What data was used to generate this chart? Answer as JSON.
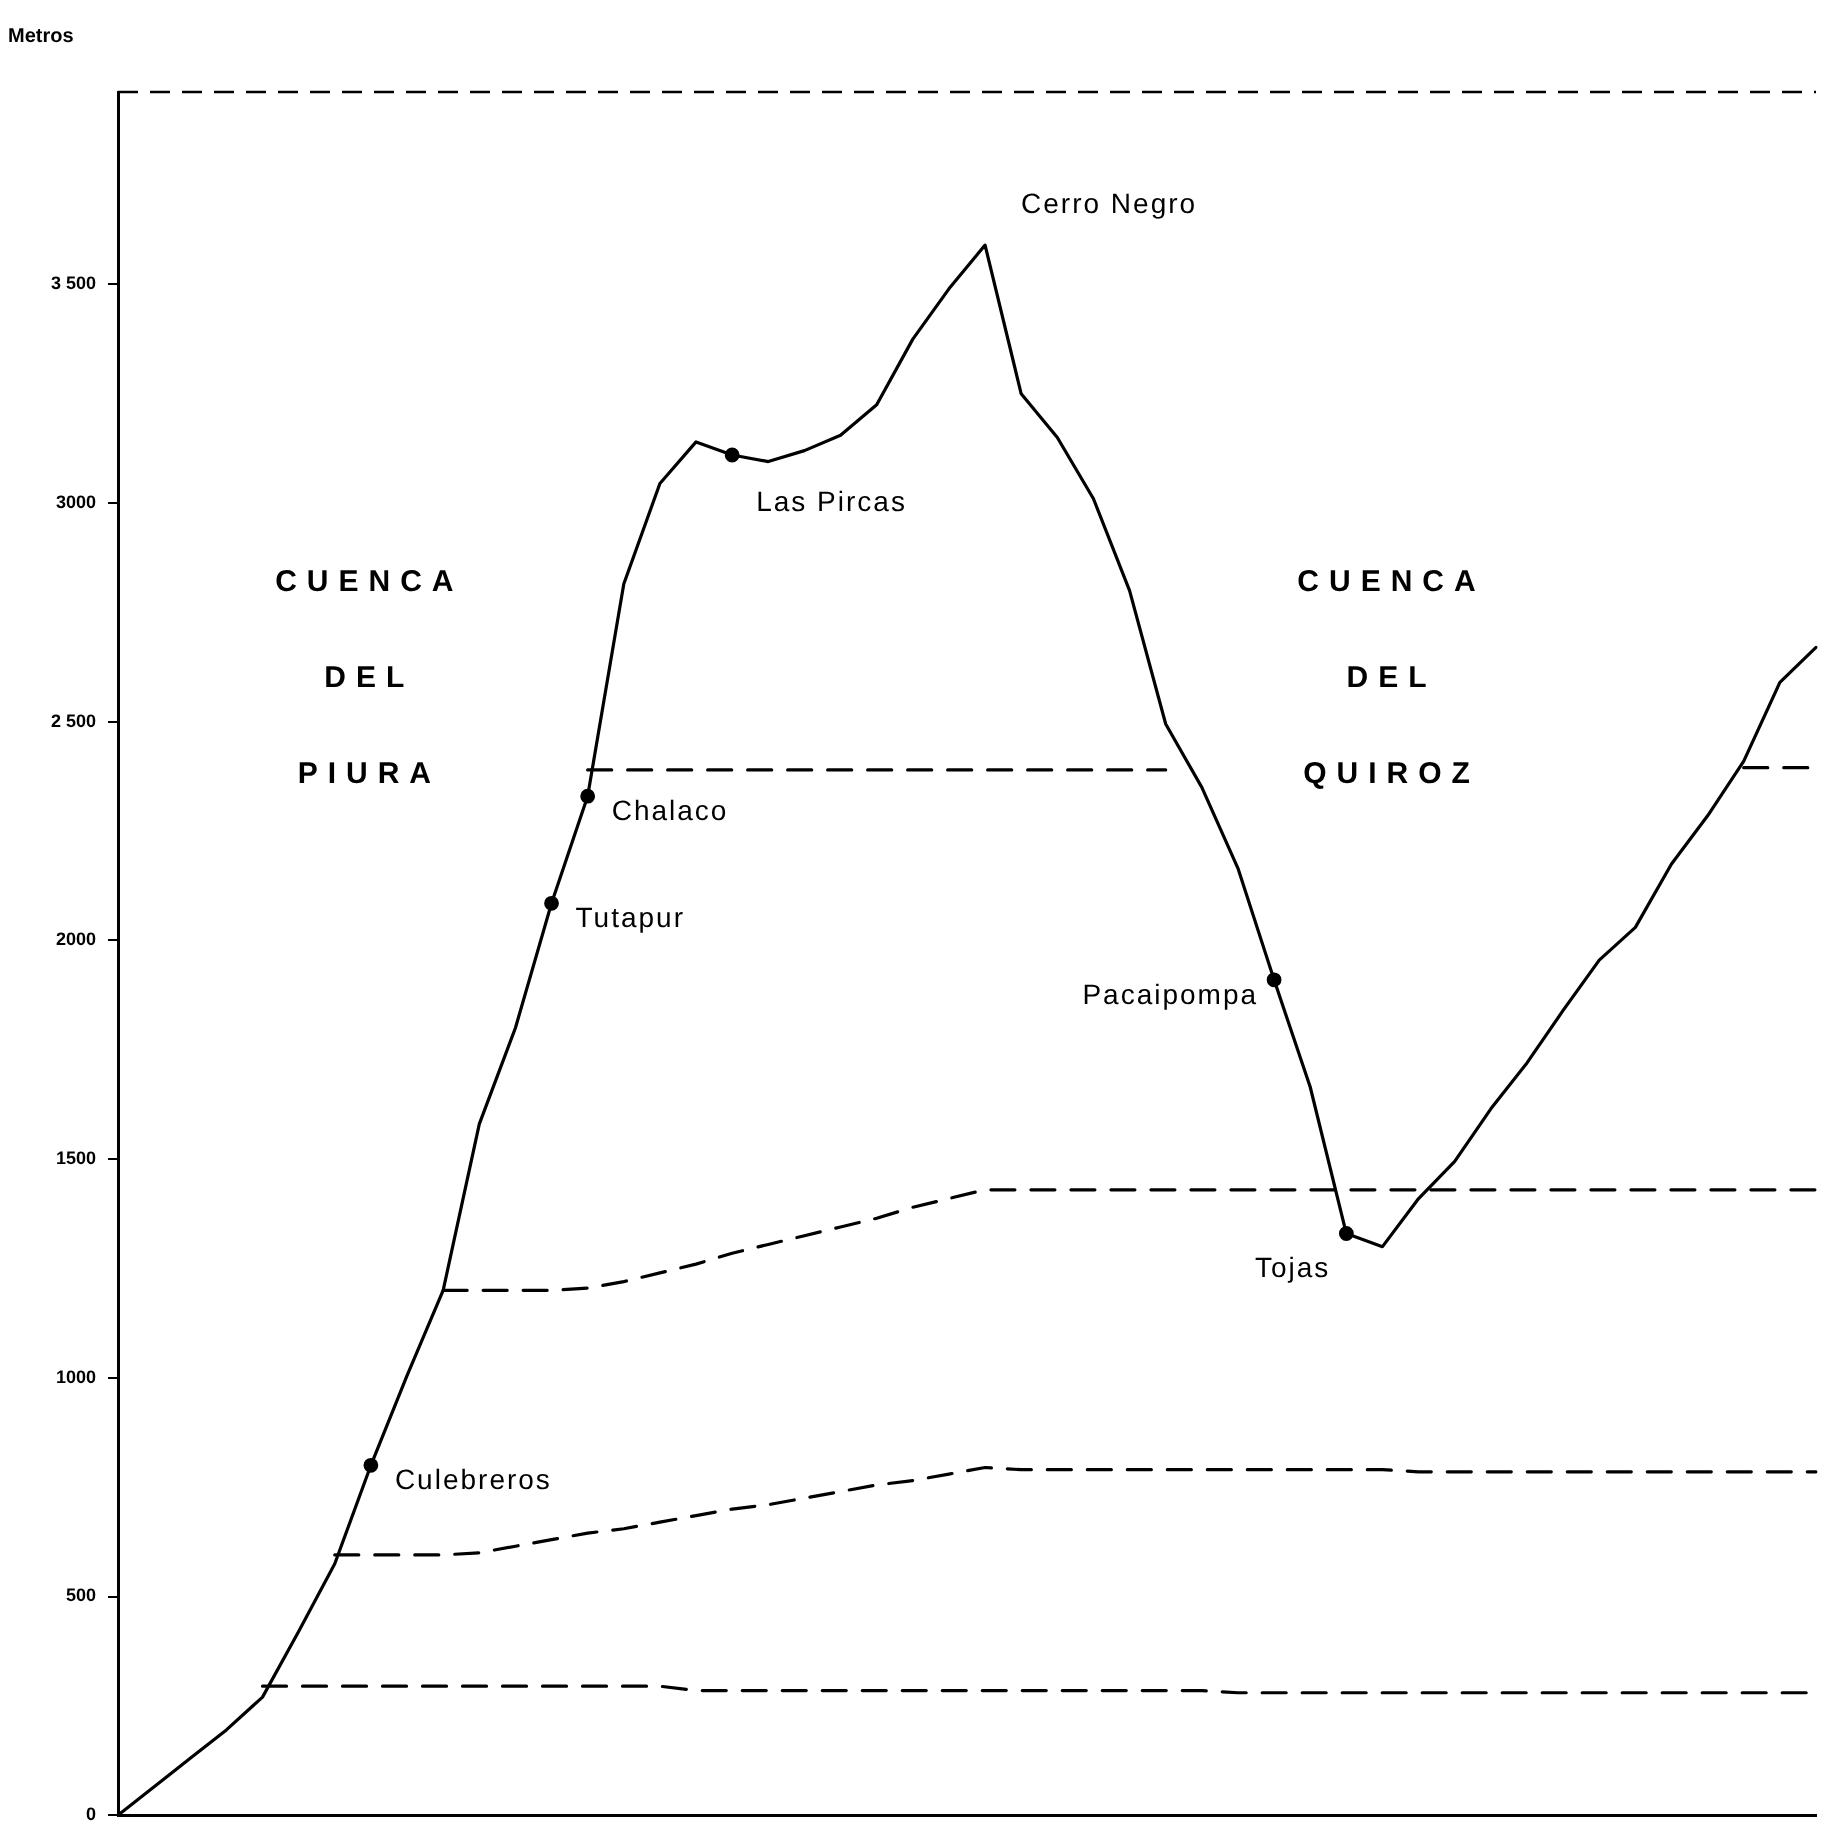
{
  "chart_data": {
    "type": "line",
    "ylabel": "Metros",
    "categories": [
      null,
      null,
      null,
      null,
      null,
      null,
      null,
      null,
      null,
      null,
      null,
      null,
      null,
      null,
      null,
      null,
      null,
      null,
      null,
      null,
      null,
      null,
      null,
      null,
      null,
      null,
      null,
      null,
      null,
      null,
      null,
      null,
      null,
      null,
      null,
      null,
      null,
      null,
      null,
      null,
      null,
      null,
      null,
      null,
      null,
      null,
      null,
      null
    ],
    "series": [
      {
        "color": "#000000",
        "line_style": "solid",
        "values": [
          0,
          65,
          130,
          195,
          270,
          420,
          575,
          800,
          1005,
          1200,
          1580,
          1800,
          2085,
          2330,
          2815,
          3045,
          3140,
          3110,
          3095,
          3120,
          3155,
          3225,
          3375,
          3490,
          3590,
          3250,
          3150,
          3010,
          2800,
          2495,
          2350,
          2165,
          1910,
          1665,
          1330,
          1300,
          1410,
          1495,
          1615,
          1720,
          1840,
          1955,
          2030,
          2175,
          2285,
          2410,
          2590,
          2670
        ],
        "value_labels": [
          null,
          null,
          null,
          null,
          null,
          null,
          null,
          "Culebreros",
          null,
          null,
          null,
          null,
          "Tutapur",
          "Chalaco",
          null,
          null,
          null,
          "Las Pircas",
          null,
          null,
          null,
          null,
          null,
          null,
          "Cerro Negro",
          null,
          null,
          null,
          null,
          null,
          null,
          null,
          "Pacaipompa",
          null,
          "Tojas",
          null,
          null,
          null,
          null,
          null,
          null,
          null,
          null,
          null,
          null,
          null,
          null,
          null
        ]
      },
      {
        "type": "line",
        "color": "#000000",
        "line_style": "dashed",
        "values": [
          null,
          null,
          null,
          null,
          295,
          295,
          295,
          295,
          295,
          295,
          295,
          295,
          295,
          295,
          295,
          295,
          285,
          285,
          285,
          285,
          285,
          285,
          285,
          285,
          285,
          285,
          285,
          285,
          285,
          285,
          285,
          280,
          280,
          280,
          280,
          280,
          280,
          280,
          280,
          280,
          280,
          280,
          280,
          280,
          280,
          280,
          280,
          280
        ]
      },
      {
        "type": "line",
        "color": "#000000",
        "line_style": "dashed",
        "values": [
          null,
          null,
          null,
          null,
          null,
          null,
          595,
          595,
          595,
          595,
          600,
          615,
          630,
          645,
          655,
          670,
          685,
          700,
          710,
          725,
          740,
          755,
          765,
          780,
          795,
          790,
          790,
          790,
          790,
          790,
          790,
          790,
          790,
          790,
          790,
          790,
          785,
          785,
          785,
          785,
          785,
          785,
          785,
          785,
          785,
          785,
          785,
          785
        ]
      },
      {
        "type": "line",
        "color": "#000000",
        "line_style": "dashed",
        "values": [
          null,
          null,
          null,
          null,
          null,
          null,
          null,
          null,
          null,
          1200,
          1200,
          1200,
          1200,
          1205,
          1220,
          1240,
          1260,
          1285,
          1305,
          1325,
          1345,
          1365,
          1390,
          1410,
          1430,
          1430,
          1430,
          1430,
          1430,
          1430,
          1430,
          1430,
          1430,
          1430,
          1430,
          1430,
          1430,
          1430,
          1430,
          1430,
          1430,
          1430,
          1430,
          1430,
          1430,
          1430,
          1430,
          1430
        ]
      },
      {
        "type": "line",
        "color": "#000000",
        "line_style": "dashed",
        "values": [
          null,
          null,
          null,
          null,
          null,
          null,
          null,
          null,
          null,
          null,
          null,
          null,
          null,
          2390,
          2390,
          2390,
          2390,
          2390,
          2390,
          2390,
          2390,
          2390,
          2390,
          2390,
          2390,
          2390,
          2390,
          2390,
          2390,
          2390,
          null,
          null,
          null,
          null,
          null,
          null,
          null,
          null,
          null,
          null,
          null,
          null,
          null,
          null,
          null,
          2395,
          2395,
          2395
        ]
      },
      {
        "type": "scatter",
        "color": "#000000",
        "marker": "circle",
        "values": [
          null,
          null,
          null,
          null,
          null,
          null,
          null,
          800,
          null,
          null,
          null,
          null,
          2085,
          2330,
          null,
          null,
          null,
          3110,
          null,
          null,
          null,
          null,
          null,
          null,
          null,
          null,
          null,
          null,
          null,
          null,
          null,
          null,
          1910,
          null,
          1330,
          null,
          null,
          null,
          null,
          null,
          null,
          null,
          null,
          null,
          null,
          null,
          null,
          null
        ]
      }
    ],
    "ylim": [
      0,
      3940
    ],
    "yticks": [
      0,
      500,
      1000,
      1500,
      2000,
      {
        "value": 2500,
        "label": "2 500"
      },
      3000,
      {
        "value": 3500,
        "label": "3 500"
      }
    ],
    "tick_labels": "y",
    "annotations": [
      "CUENCA DEL PIURA",
      "CUENCA DEL QUIROZ"
    ]
  }
}
